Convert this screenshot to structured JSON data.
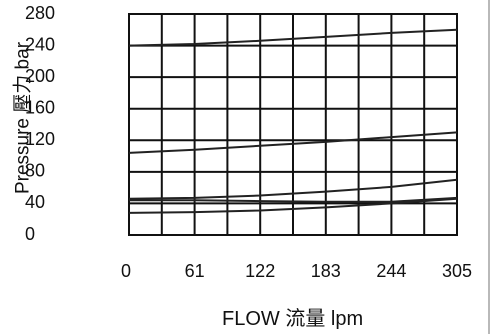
{
  "chart_data": {
    "type": "line",
    "xlabel": "FLOW 流量 lpm",
    "ylabel": "Pressure 壓力  bar",
    "x_ticks": [
      "0",
      "61",
      "122",
      "183",
      "244",
      "305"
    ],
    "y_ticks": [
      "280",
      "240",
      "200",
      "160",
      "120",
      "80",
      "40",
      "0"
    ],
    "xlim": [
      0,
      305
    ],
    "ylim": [
      0,
      280
    ],
    "grid": true,
    "grid_columns": 10,
    "grid_rows": 7,
    "series": [
      {
        "x": [
          0,
          61,
          122,
          183,
          244,
          305
        ],
        "y": [
          240,
          242,
          246,
          251,
          256,
          260
        ]
      },
      {
        "x": [
          0,
          61,
          122,
          183,
          244,
          305
        ],
        "y": [
          104,
          108,
          113,
          118,
          124,
          130
        ]
      },
      {
        "x": [
          0,
          61,
          122,
          183,
          244,
          305
        ],
        "y": [
          46,
          47,
          50,
          55,
          61,
          70
        ]
      },
      {
        "x": [
          0,
          61,
          122,
          183,
          244,
          305
        ],
        "y": [
          44,
          44,
          43,
          42,
          42,
          47
        ]
      },
      {
        "x": [
          0,
          61,
          122,
          183,
          244,
          305
        ],
        "y": [
          28,
          29,
          31,
          35,
          40,
          46
        ]
      }
    ]
  }
}
